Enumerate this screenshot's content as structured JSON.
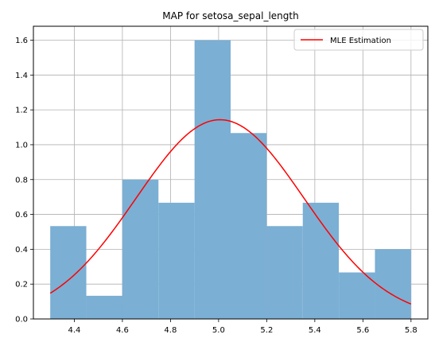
{
  "chart_data": {
    "type": "histogram",
    "title": "MAP for setosa_sepal_length",
    "xlabel": "",
    "ylabel": "",
    "xlim": [
      4.23,
      5.87
    ],
    "ylim": [
      0.0,
      1.68
    ],
    "x_ticks": [
      "4.4",
      "4.6",
      "4.8",
      "5.0",
      "5.2",
      "5.4",
      "5.6",
      "5.8"
    ],
    "y_ticks": [
      "0.0",
      "0.2",
      "0.4",
      "0.6",
      "0.8",
      "1.0",
      "1.2",
      "1.4",
      "1.6"
    ],
    "grid": true,
    "legend_position": "top-right",
    "histogram": {
      "bin_edges": [
        4.3,
        4.45,
        4.6,
        4.75,
        4.9,
        5.05,
        5.2,
        5.35,
        5.5,
        5.65,
        5.8
      ],
      "densities": [
        0.533,
        0.133,
        0.8,
        0.667,
        1.6,
        1.067,
        0.533,
        0.667,
        0.267,
        0.4
      ],
      "color": "#7bafd4"
    },
    "series": [
      {
        "name": "MLE Estimation",
        "type": "line",
        "color": "#ff0000",
        "distribution": "normal",
        "mean": 5.006,
        "std": 0.3489,
        "x_range": [
          4.3,
          5.8
        ]
      }
    ]
  }
}
